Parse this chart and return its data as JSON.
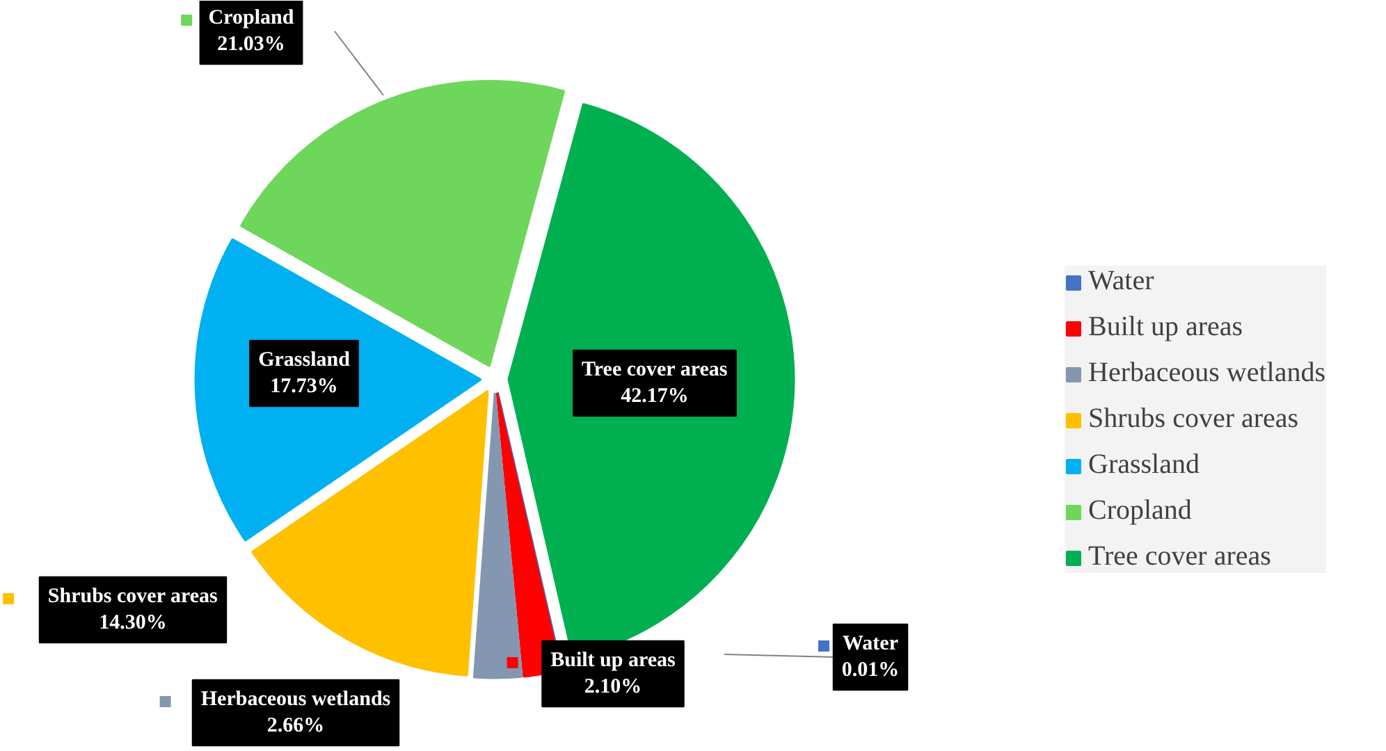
{
  "chart_data": {
    "type": "pie",
    "categories": [
      "Water",
      "Built up areas",
      "Herbaceous wetlands",
      "Shrubs cover areas",
      "Grassland",
      "Cropland",
      "Tree cover areas"
    ],
    "values": [
      0.01,
      2.1,
      2.66,
      14.3,
      17.73,
      21.03,
      42.17
    ],
    "colors": [
      "#4472c4",
      "#ff0000",
      "#8497b0",
      "#ffc000",
      "#00b0f0",
      "#6fd65c",
      "#00b050"
    ],
    "value_labels": [
      "0.01%",
      "2.10%",
      "2.66%",
      "14.30%",
      "17.73%",
      "21.03%",
      "42.17%"
    ],
    "legend": "right"
  }
}
